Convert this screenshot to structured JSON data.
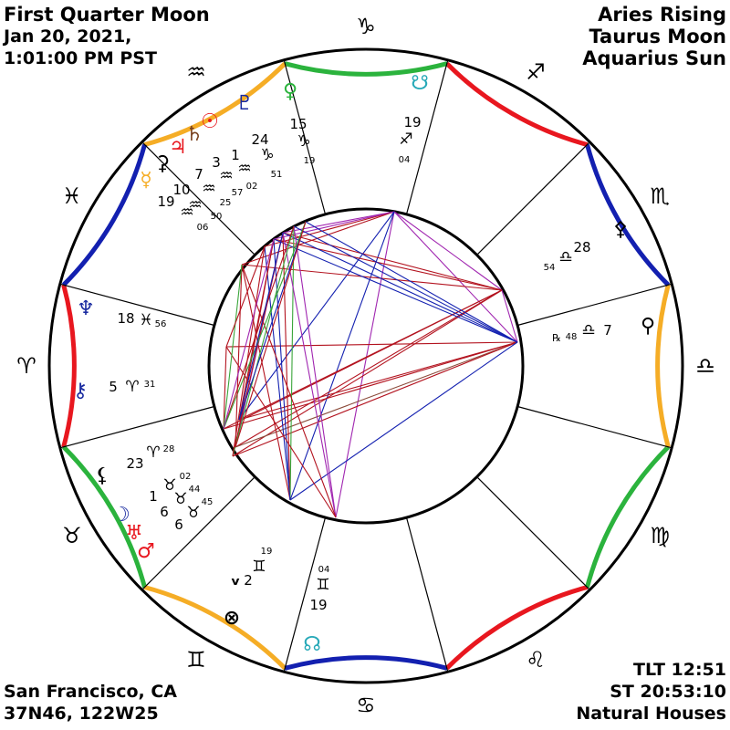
{
  "header_left": {
    "phase": "First Quarter Moon",
    "date": "Jan 20, 2021,",
    "time": "1:01:00 PM PST"
  },
  "header_right": {
    "rising": "Aries Rising",
    "moon": "Taurus Moon",
    "sun": "Aquarius Sun"
  },
  "footer_left": {
    "place": "San Francisco, CA",
    "coords": "37N46, 122W25"
  },
  "footer_right": {
    "tlt": "TLT 12:51",
    "st": "ST 20:53:10",
    "houses": "Natural Houses"
  },
  "zodiac_signs": [
    {
      "name": "aries",
      "glyph": "♈",
      "color": "#000000"
    },
    {
      "name": "taurus",
      "glyph": "♉",
      "color": "#000000"
    },
    {
      "name": "gemini",
      "glyph": "♊",
      "color": "#000000"
    },
    {
      "name": "cancer",
      "glyph": "♋",
      "color": "#000000"
    },
    {
      "name": "leo",
      "glyph": "♌",
      "color": "#000000"
    },
    {
      "name": "virgo",
      "glyph": "♍",
      "color": "#000000"
    },
    {
      "name": "libra",
      "glyph": "♎",
      "color": "#000000"
    },
    {
      "name": "scorpio",
      "glyph": "♏",
      "color": "#000000"
    },
    {
      "name": "sagittarius",
      "glyph": "♐",
      "color": "#000000"
    },
    {
      "name": "capricorn",
      "glyph": "♑",
      "color": "#000000"
    },
    {
      "name": "aquarius",
      "glyph": "♒",
      "color": "#000000"
    },
    {
      "name": "pisces",
      "glyph": "♓",
      "color": "#000000"
    }
  ],
  "element_colors": {
    "fire": "#e8171f",
    "earth": "#2bb33d",
    "air": "#f5ad26",
    "water": "#1320b0"
  },
  "bodies": [
    {
      "name": "pluto",
      "glyph": "♇",
      "color": "#1a2ba0",
      "deg": "24",
      "sign": "♑",
      "min": "51",
      "order": "d-s-m"
    },
    {
      "name": "venus",
      "glyph": "♀",
      "color": "#2bb33d",
      "deg": "15",
      "sign": "♑",
      "min": "19",
      "order": "d-s-m"
    },
    {
      "name": "south-node",
      "glyph": "☋",
      "color": "#27a9b8",
      "deg": "19",
      "sign": "♐",
      "min": "04",
      "order": "d-s-m"
    },
    {
      "name": "sun",
      "glyph": "☉",
      "color": "#e8171f",
      "deg": "1",
      "sign": "♒",
      "min": "02",
      "order": "d-s-m"
    },
    {
      "name": "saturn",
      "glyph": "♄",
      "color": "#7a4320",
      "deg": "3",
      "sign": "♒",
      "min": "57",
      "order": "d-s-m"
    },
    {
      "name": "jupiter",
      "glyph": "♃",
      "color": "#e8171f",
      "deg": "7",
      "sign": "♒",
      "min": "25",
      "order": "d-s-m"
    },
    {
      "name": "ceres",
      "glyph": "⚳",
      "color": "#000000",
      "deg": "10",
      "sign": "♒",
      "min": "50",
      "order": "d-s-m"
    },
    {
      "name": "mercury",
      "glyph": "☿",
      "color": "#f5ad26",
      "deg": "19",
      "sign": "♒",
      "min": "06",
      "order": "d-s-m"
    },
    {
      "name": "neptune",
      "glyph": "♆",
      "color": "#1a2ba0",
      "deg": "18",
      "sign": "♓",
      "min": "56",
      "order": "d-s-m"
    },
    {
      "name": "chiron",
      "glyph": "⚷",
      "color": "#1a2ba0",
      "deg": "5",
      "sign": "♈",
      "min": "31",
      "order": "d-s-m"
    },
    {
      "name": "lilith",
      "glyph": "⚸",
      "color": "#000000",
      "deg": "23",
      "sign": "♈",
      "min": "28",
      "order": "d-s-m"
    },
    {
      "name": "moon",
      "glyph": "☽",
      "color": "#1a2ba0",
      "deg": "1",
      "sign": "♉",
      "min": "02",
      "order": "d-s-m"
    },
    {
      "name": "uranus",
      "glyph": "♅",
      "color": "#e8171f",
      "deg": "6",
      "sign": "♉",
      "min": "44",
      "order": "d-s-m"
    },
    {
      "name": "mars",
      "glyph": "♂",
      "color": "#e8171f",
      "deg": "6",
      "sign": "♉",
      "min": "45",
      "order": "d-s-m"
    },
    {
      "name": "vertex",
      "glyph": "ᵛ",
      "color": "#000000",
      "deg": "2",
      "sign": "♊",
      "min": "19",
      "order": "d-s-m"
    },
    {
      "name": "fortune",
      "glyph": "⊗",
      "color": "#000000",
      "deg": "19",
      "sign": "♊",
      "min": "04",
      "order": "d-s-m"
    },
    {
      "name": "north-node",
      "glyph": "☊",
      "color": "#27a9b8",
      "deg": "",
      "sign": "",
      "min": "",
      "order": "none"
    },
    {
      "name": "eris",
      "glyph": "⚴",
      "color": "#000000",
      "deg": "28",
      "sign": "♎",
      "min": "54",
      "order": "d-s-m"
    },
    {
      "name": "pallas",
      "glyph": "⚲",
      "color": "#000000",
      "deg": "7",
      "sign": "♎",
      "min": "48",
      "order": "retro",
      "retro": "℞"
    }
  ],
  "aspect_colors": {
    "hard": "#b3131f",
    "soft": "#1320b0",
    "minor": "#a025b0",
    "green": "#3aa53a",
    "brown": "#8b4a3a"
  }
}
